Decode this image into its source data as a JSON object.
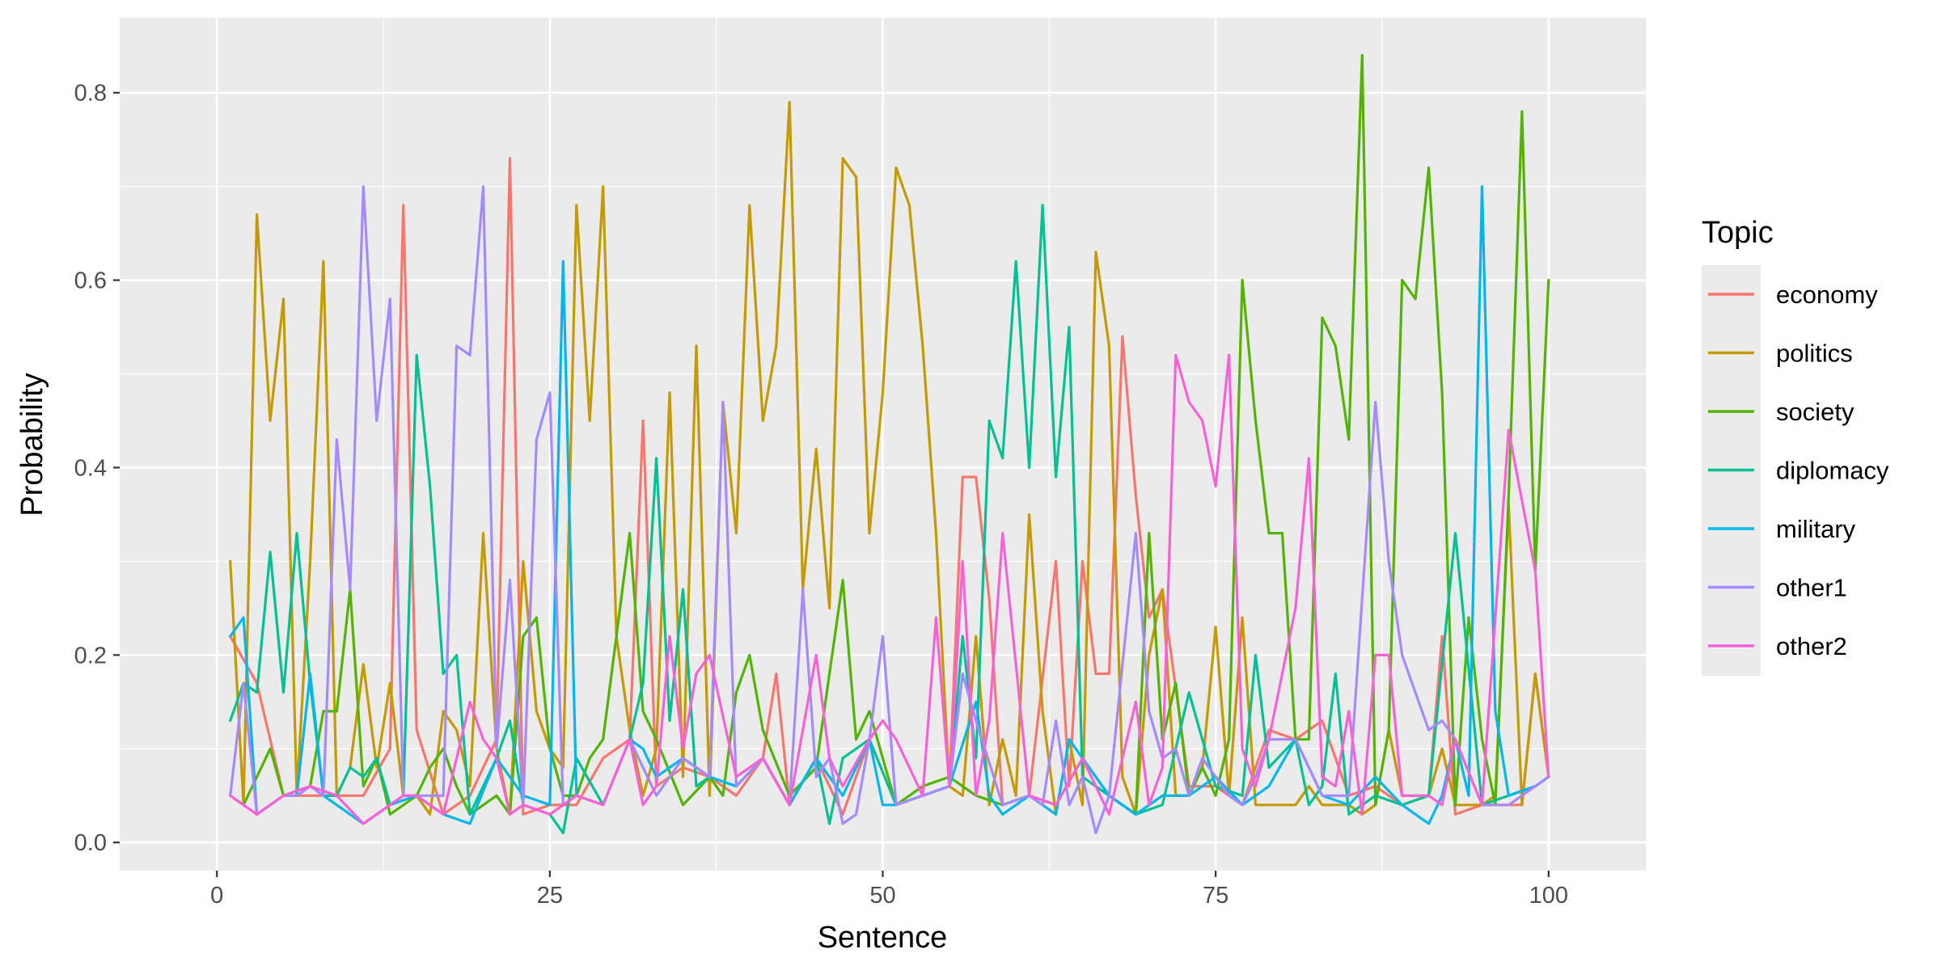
{
  "chart_data": {
    "type": "line",
    "xlabel": "Sentence",
    "ylabel": "Probability",
    "xlim": [
      -7.3,
      107.3
    ],
    "ylim": [
      -0.03,
      0.88
    ],
    "x_ticks": [
      0,
      25,
      50,
      75,
      100
    ],
    "y_ticks": [
      0.0,
      0.2,
      0.4,
      0.6,
      0.8
    ],
    "x_tick_labels": [
      "0",
      "25",
      "50",
      "75",
      "100"
    ],
    "y_tick_labels": [
      "0.0",
      "0.2",
      "0.4",
      "0.6",
      "0.8"
    ],
    "grid": true,
    "legend_title": "Topic",
    "legend_placement": "right",
    "series": [
      {
        "name": "economy",
        "color": "#F8766D",
        "x": [
          1,
          3,
          5,
          7,
          9,
          11,
          13,
          14,
          15,
          17,
          19,
          21,
          22,
          23,
          25,
          27,
          29,
          31,
          32,
          33,
          35,
          37,
          39,
          41,
          42,
          43,
          45,
          47,
          49,
          51,
          53,
          55,
          56,
          57,
          58,
          59,
          61,
          63,
          64,
          65,
          66,
          67,
          68,
          69,
          70,
          71,
          73,
          75,
          77,
          79,
          81,
          83,
          85,
          87,
          89,
          91,
          92,
          93,
          95,
          97,
          98,
          99,
          100
        ],
        "values": [
          0.22,
          0.17,
          0.05,
          0.05,
          0.05,
          0.05,
          0.1,
          0.68,
          0.12,
          0.03,
          0.05,
          0.11,
          0.73,
          0.03,
          0.04,
          0.04,
          0.09,
          0.11,
          0.45,
          0.06,
          0.08,
          0.07,
          0.05,
          0.09,
          0.18,
          0.04,
          0.09,
          0.03,
          0.11,
          0.04,
          0.05,
          0.06,
          0.39,
          0.39,
          0.26,
          0.04,
          0.05,
          0.3,
          0.06,
          0.3,
          0.18,
          0.18,
          0.54,
          0.37,
          0.24,
          0.27,
          0.06,
          0.06,
          0.04,
          0.12,
          0.11,
          0.13,
          0.05,
          0.06,
          0.04,
          0.05,
          0.22,
          0.03,
          0.04,
          0.04,
          0.04,
          0.18,
          0.07
        ]
      },
      {
        "name": "politics",
        "color": "#C49A00",
        "x": [
          1,
          2,
          3,
          4,
          5,
          6,
          7,
          8,
          9,
          10,
          11,
          12,
          13,
          14,
          15,
          16,
          17,
          18,
          19,
          20,
          21,
          22,
          23,
          24,
          25,
          26,
          27,
          28,
          29,
          30,
          31,
          32,
          33,
          34,
          35,
          36,
          37,
          38,
          39,
          40,
          41,
          42,
          43,
          44,
          45,
          46,
          47,
          48,
          49,
          50,
          51,
          52,
          53,
          54,
          55,
          56,
          57,
          58,
          59,
          60,
          61,
          62,
          63,
          64,
          65,
          66,
          67,
          68,
          69,
          70,
          71,
          72,
          73,
          74,
          75,
          76,
          77,
          78,
          79,
          80,
          81,
          82,
          83,
          84,
          85,
          86,
          87,
          88,
          89,
          90,
          91,
          92,
          93,
          94,
          95,
          96,
          97,
          98,
          99,
          100
        ],
        "values": [
          0.3,
          0.04,
          0.67,
          0.45,
          0.58,
          0.05,
          0.3,
          0.62,
          0.05,
          0.08,
          0.19,
          0.08,
          0.17,
          0.05,
          0.05,
          0.03,
          0.14,
          0.12,
          0.06,
          0.33,
          0.1,
          0.03,
          0.3,
          0.14,
          0.1,
          0.08,
          0.68,
          0.45,
          0.7,
          0.22,
          0.12,
          0.05,
          0.1,
          0.48,
          0.07,
          0.53,
          0.05,
          0.47,
          0.33,
          0.68,
          0.45,
          0.53,
          0.79,
          0.27,
          0.42,
          0.25,
          0.73,
          0.71,
          0.33,
          0.48,
          0.72,
          0.68,
          0.53,
          0.33,
          0.06,
          0.05,
          0.22,
          0.04,
          0.11,
          0.05,
          0.35,
          0.14,
          0.03,
          0.11,
          0.04,
          0.63,
          0.53,
          0.07,
          0.03,
          0.2,
          0.27,
          0.05,
          0.05,
          0.08,
          0.23,
          0.05,
          0.24,
          0.04,
          0.04,
          0.04,
          0.04,
          0.06,
          0.04,
          0.04,
          0.04,
          0.03,
          0.04,
          0.12,
          0.05,
          0.05,
          0.05,
          0.1,
          0.04,
          0.04,
          0.04,
          0.05,
          0.36,
          0.04,
          0.18,
          0.07
        ]
      },
      {
        "name": "society",
        "color": "#53B400",
        "x": [
          1,
          2,
          4,
          5,
          7,
          8,
          9,
          10,
          11,
          12,
          13,
          15,
          16,
          17,
          18,
          19,
          21,
          22,
          23,
          24,
          25,
          26,
          27,
          28,
          29,
          31,
          32,
          33,
          35,
          37,
          38,
          39,
          40,
          41,
          43,
          45,
          46,
          47,
          48,
          49,
          51,
          53,
          55,
          57,
          59,
          61,
          63,
          65,
          67,
          69,
          70,
          71,
          72,
          73,
          74,
          75,
          76,
          77,
          78,
          79,
          80,
          81,
          82,
          83,
          84,
          85,
          86,
          87,
          88,
          89,
          90,
          91,
          92,
          93,
          94,
          95,
          96,
          97,
          98,
          99,
          100
        ],
        "values": [
          0.05,
          0.04,
          0.1,
          0.05,
          0.06,
          0.14,
          0.14,
          0.27,
          0.06,
          0.09,
          0.03,
          0.05,
          0.08,
          0.1,
          0.06,
          0.03,
          0.05,
          0.03,
          0.22,
          0.24,
          0.1,
          0.05,
          0.05,
          0.09,
          0.11,
          0.33,
          0.14,
          0.11,
          0.04,
          0.07,
          0.05,
          0.16,
          0.2,
          0.12,
          0.05,
          0.08,
          0.18,
          0.28,
          0.11,
          0.14,
          0.04,
          0.06,
          0.07,
          0.05,
          0.04,
          0.05,
          0.04,
          0.09,
          0.05,
          0.03,
          0.33,
          0.11,
          0.17,
          0.05,
          0.08,
          0.05,
          0.11,
          0.6,
          0.45,
          0.33,
          0.33,
          0.11,
          0.11,
          0.56,
          0.53,
          0.43,
          0.84,
          0.04,
          0.12,
          0.6,
          0.58,
          0.72,
          0.48,
          0.04,
          0.24,
          0.11,
          0.04,
          0.37,
          0.78,
          0.29,
          0.6
        ]
      },
      {
        "name": "diplomacy",
        "color": "#00C094",
        "x": [
          1,
          2,
          3,
          4,
          5,
          6,
          7,
          8,
          9,
          10,
          11,
          12,
          13,
          14,
          15,
          16,
          17,
          18,
          19,
          21,
          22,
          23,
          25,
          26,
          27,
          29,
          31,
          32,
          33,
          34,
          35,
          36,
          37,
          39,
          41,
          43,
          45,
          46,
          47,
          49,
          51,
          53,
          55,
          56,
          57,
          58,
          59,
          60,
          61,
          62,
          63,
          64,
          65,
          67,
          69,
          71,
          73,
          75,
          77,
          78,
          79,
          81,
          82,
          83,
          84,
          85,
          87,
          89,
          91,
          93,
          95,
          97,
          99,
          100
        ],
        "values": [
          0.13,
          0.17,
          0.16,
          0.31,
          0.16,
          0.33,
          0.17,
          0.05,
          0.05,
          0.08,
          0.07,
          0.09,
          0.04,
          0.05,
          0.52,
          0.38,
          0.18,
          0.2,
          0.03,
          0.09,
          0.13,
          0.04,
          0.03,
          0.01,
          0.09,
          0.04,
          0.11,
          0.17,
          0.41,
          0.13,
          0.27,
          0.06,
          0.07,
          0.06,
          0.09,
          0.04,
          0.09,
          0.02,
          0.09,
          0.11,
          0.04,
          0.05,
          0.06,
          0.22,
          0.09,
          0.45,
          0.41,
          0.62,
          0.4,
          0.68,
          0.39,
          0.55,
          0.07,
          0.05,
          0.03,
          0.04,
          0.16,
          0.06,
          0.05,
          0.2,
          0.08,
          0.11,
          0.04,
          0.06,
          0.18,
          0.03,
          0.05,
          0.04,
          0.05,
          0.33,
          0.04,
          0.05,
          0.06,
          0.07
        ]
      },
      {
        "name": "military",
        "color": "#00B6EB",
        "x": [
          1,
          2,
          3,
          5,
          6,
          7,
          8,
          9,
          11,
          13,
          15,
          17,
          19,
          21,
          23,
          25,
          26,
          27,
          29,
          31,
          32,
          33,
          35,
          37,
          39,
          41,
          43,
          45,
          47,
          49,
          50,
          51,
          53,
          55,
          57,
          58,
          59,
          61,
          63,
          64,
          65,
          67,
          69,
          71,
          73,
          75,
          77,
          79,
          81,
          83,
          85,
          87,
          89,
          91,
          92,
          93,
          94,
          95,
          96,
          97,
          99,
          100
        ],
        "values": [
          0.22,
          0.24,
          0.03,
          0.05,
          0.05,
          0.18,
          0.05,
          0.04,
          0.02,
          0.04,
          0.05,
          0.03,
          0.02,
          0.09,
          0.05,
          0.04,
          0.62,
          0.05,
          0.04,
          0.11,
          0.1,
          0.07,
          0.09,
          0.07,
          0.06,
          0.09,
          0.04,
          0.09,
          0.05,
          0.11,
          0.04,
          0.04,
          0.05,
          0.06,
          0.15,
          0.05,
          0.03,
          0.05,
          0.03,
          0.11,
          0.09,
          0.05,
          0.03,
          0.05,
          0.05,
          0.07,
          0.04,
          0.06,
          0.11,
          0.05,
          0.04,
          0.07,
          0.04,
          0.02,
          0.05,
          0.11,
          0.05,
          0.7,
          0.14,
          0.05,
          0.06,
          0.07
        ]
      },
      {
        "name": "other1",
        "color": "#A58AFF",
        "x": [
          1,
          2,
          3,
          5,
          6,
          7,
          8,
          9,
          10,
          11,
          12,
          13,
          14,
          15,
          16,
          17,
          18,
          19,
          20,
          21,
          22,
          23,
          24,
          25,
          26,
          27,
          29,
          31,
          33,
          35,
          37,
          38,
          39,
          41,
          43,
          44,
          45,
          46,
          47,
          48,
          49,
          50,
          51,
          53,
          55,
          56,
          57,
          59,
          61,
          62,
          63,
          64,
          65,
          66,
          67,
          69,
          70,
          71,
          72,
          73,
          74,
          75,
          76,
          77,
          78,
          79,
          81,
          83,
          85,
          87,
          88,
          89,
          90,
          91,
          92,
          93,
          95,
          97,
          99,
          100
        ],
        "values": [
          0.05,
          0.17,
          0.03,
          0.05,
          0.05,
          0.06,
          0.05,
          0.43,
          0.27,
          0.7,
          0.45,
          0.58,
          0.05,
          0.05,
          0.05,
          0.05,
          0.53,
          0.52,
          0.7,
          0.1,
          0.28,
          0.04,
          0.43,
          0.48,
          0.04,
          0.05,
          0.04,
          0.11,
          0.05,
          0.09,
          0.07,
          0.47,
          0.06,
          0.09,
          0.04,
          0.27,
          0.07,
          0.09,
          0.02,
          0.03,
          0.11,
          0.22,
          0.04,
          0.05,
          0.06,
          0.18,
          0.13,
          0.04,
          0.05,
          0.04,
          0.13,
          0.04,
          0.07,
          0.01,
          0.05,
          0.33,
          0.14,
          0.09,
          0.1,
          0.05,
          0.09,
          0.07,
          0.05,
          0.04,
          0.07,
          0.11,
          0.11,
          0.05,
          0.05,
          0.47,
          0.3,
          0.2,
          0.16,
          0.12,
          0.13,
          0.11,
          0.04,
          0.04,
          0.06,
          0.07
        ]
      },
      {
        "name": "other2",
        "color": "#FB61D7",
        "x": [
          1,
          3,
          5,
          7,
          9,
          11,
          13,
          14,
          15,
          17,
          19,
          20,
          21,
          22,
          23,
          25,
          27,
          29,
          31,
          32,
          33,
          34,
          35,
          36,
          37,
          39,
          41,
          43,
          45,
          46,
          47,
          49,
          50,
          51,
          53,
          54,
          55,
          56,
          57,
          58,
          59,
          61,
          63,
          65,
          67,
          69,
          70,
          71,
          72,
          73,
          74,
          75,
          76,
          77,
          78,
          79,
          81,
          82,
          83,
          84,
          85,
          86,
          87,
          88,
          89,
          90,
          91,
          92,
          93,
          95,
          97,
          99,
          100
        ],
        "values": [
          0.05,
          0.03,
          0.05,
          0.06,
          0.05,
          0.02,
          0.04,
          0.05,
          0.05,
          0.03,
          0.15,
          0.11,
          0.09,
          0.03,
          0.04,
          0.03,
          0.05,
          0.04,
          0.11,
          0.04,
          0.06,
          0.22,
          0.1,
          0.18,
          0.2,
          0.07,
          0.09,
          0.04,
          0.2,
          0.09,
          0.06,
          0.11,
          0.13,
          0.11,
          0.05,
          0.24,
          0.06,
          0.3,
          0.05,
          0.13,
          0.33,
          0.05,
          0.04,
          0.09,
          0.03,
          0.15,
          0.04,
          0.08,
          0.52,
          0.47,
          0.45,
          0.38,
          0.52,
          0.1,
          0.06,
          0.11,
          0.25,
          0.41,
          0.07,
          0.06,
          0.14,
          0.03,
          0.2,
          0.2,
          0.05,
          0.05,
          0.05,
          0.04,
          0.11,
          0.04,
          0.44,
          0.29,
          0.07
        ]
      }
    ]
  }
}
